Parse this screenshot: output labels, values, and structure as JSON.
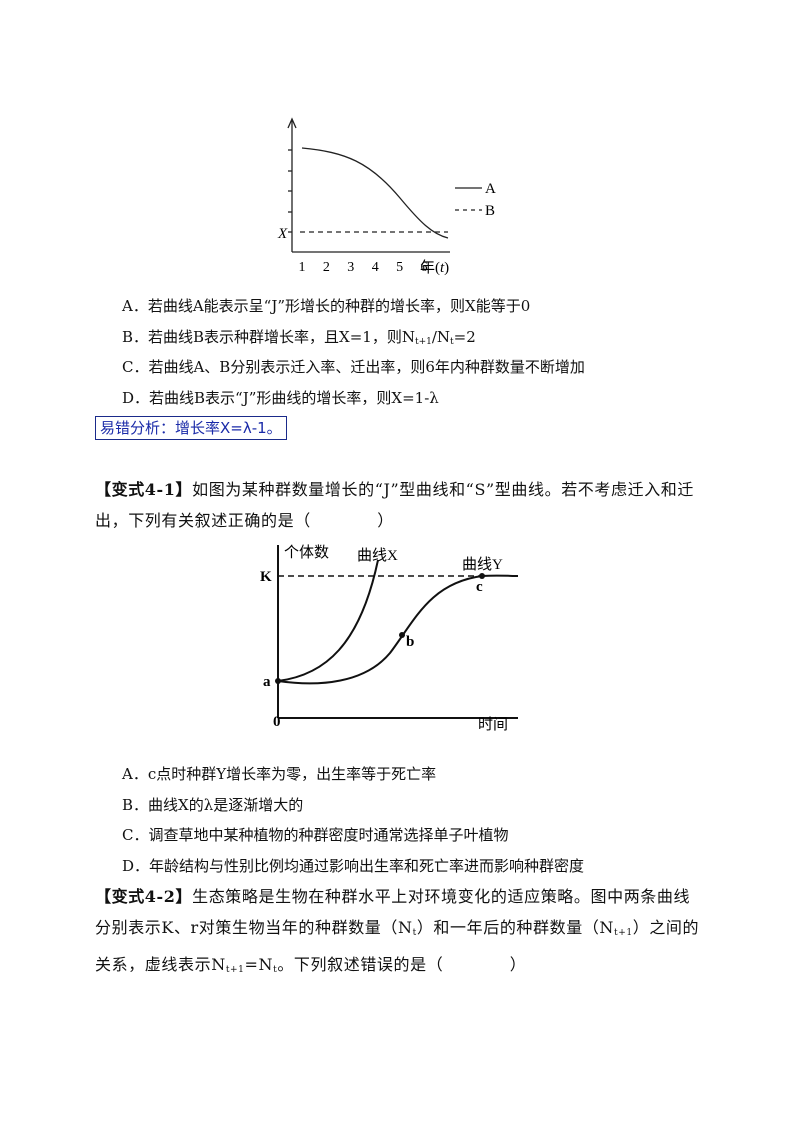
{
  "question1": {
    "figure": {
      "y_mark": "X",
      "x_ticks": [
        "1",
        "2",
        "3",
        "4",
        "5",
        "6"
      ],
      "x_label": "年(",
      "x_var": "t",
      "x_label_end": ")",
      "legend": [
        "A",
        "B"
      ]
    },
    "options": [
      [
        "A．若曲线A能表示呈“J”形增长的种群的增长率，则X能等于0"
      ],
      [
        "B．若曲线B表示种群增长率，且X=1，则N",
        "t+1",
        "/N",
        "t",
        "=2"
      ],
      [
        "C．若曲线A、B分别表示迁入率、迁出率，则6年内种群数量不断增加"
      ],
      [
        "D．若曲线B表示“J”形曲线的增长率，则X=1-λ"
      ]
    ],
    "analysis": "易错分析：增长率X=λ-1。"
  },
  "variant1": {
    "label": "【变式4-1】",
    "stem": [
      "如图为某种群数量增长的“J”型曲线和“S”型曲线。若不考虑迁入和迁出，下列有关叙述正确的是（　　　　）"
    ],
    "figure": {
      "y_label": "个体数",
      "x_label": "时间",
      "origin": "0",
      "k": "K",
      "curve_x": "曲线X",
      "curve_y": "曲线Y",
      "points": [
        "a",
        "b",
        "c"
      ]
    },
    "options": [
      [
        "A．c点时种群Y增长率为零，出生率等于死亡率"
      ],
      [
        "B．曲线X的λ是逐渐增大的"
      ],
      [
        "C．调查草地中某种植物的种群密度时通常选择单子叶植物"
      ],
      [
        "D．年龄结构与性别比例均通过影响出生率和死亡率进而影响种群密度"
      ]
    ]
  },
  "variant2": {
    "label": "【变式4-2】",
    "stem": [
      "生态策略是生物在种群水平上对环境变化的适应策略。图中两条曲线分别表示K、r对策生物当年的种群数量（N",
      "t",
      "）和一年后的种群数量（N",
      "t+1",
      "）之间的关系，虚线表示N",
      "t+1",
      "=N",
      "t",
      "。下列叙述错误的是（　　　　）"
    ]
  }
}
